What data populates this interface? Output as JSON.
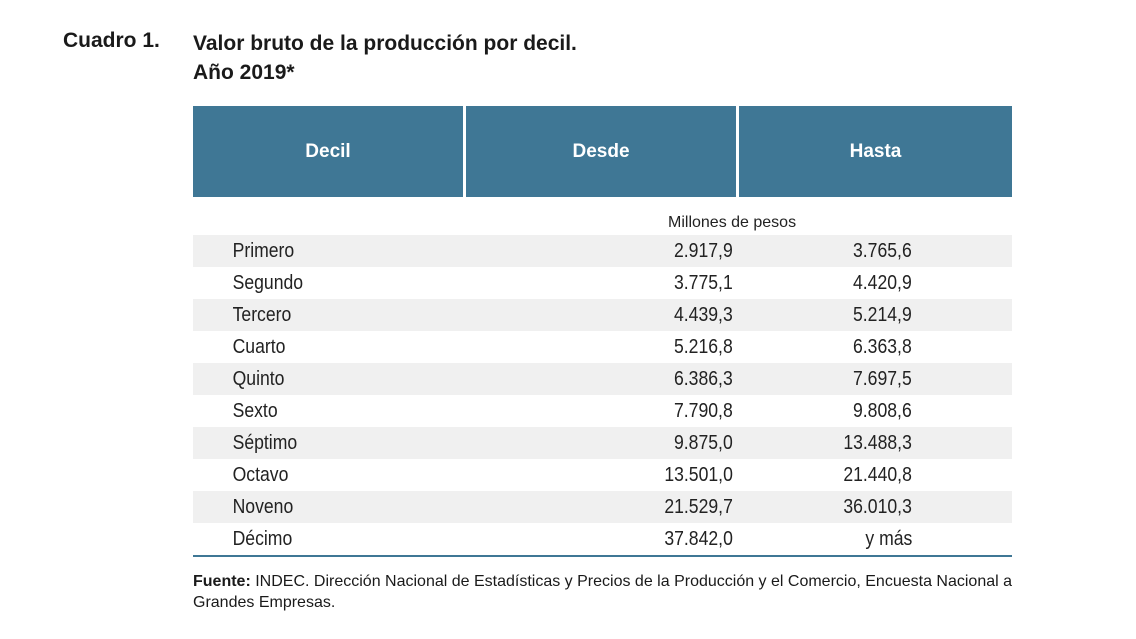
{
  "caption": {
    "label": "Cuadro 1.",
    "title_line1": "Valor bruto de la producción por decil.",
    "title_line2": "Año 2019*"
  },
  "table": {
    "headers": [
      "Decil",
      "Desde",
      "Hasta"
    ],
    "units": "Millones de pesos",
    "rows": [
      {
        "decil": "Primero",
        "desde": "2.917,9",
        "hasta": "3.765,6"
      },
      {
        "decil": "Segundo",
        "desde": "3.775,1",
        "hasta": "4.420,9"
      },
      {
        "decil": "Tercero",
        "desde": "4.439,3",
        "hasta": "5.214,9"
      },
      {
        "decil": "Cuarto",
        "desde": "5.216,8",
        "hasta": "6.363,8"
      },
      {
        "decil": "Quinto",
        "desde": "6.386,3",
        "hasta": "7.697,5"
      },
      {
        "decil": "Sexto",
        "desde": "7.790,8",
        "hasta": "9.808,6"
      },
      {
        "decil": "Séptimo",
        "desde": "9.875,0",
        "hasta": "13.488,3"
      },
      {
        "decil": "Octavo",
        "desde": "13.501,0",
        "hasta": "21.440,8"
      },
      {
        "decil": "Noveno",
        "desde": "21.529,7",
        "hasta": "36.010,3"
      },
      {
        "decil": "Décimo",
        "desde": "37.842,0",
        "hasta": "y más"
      }
    ]
  },
  "source": {
    "label": "Fuente:",
    "text": " INDEC. Dirección Nacional de Estadísticas y Precios de la Producción y el Comercio, Encuesta Nacional a Grandes Empresas."
  },
  "colors": {
    "header_bg": "#3f7795",
    "row_alt_bg": "#f0f0f0"
  }
}
